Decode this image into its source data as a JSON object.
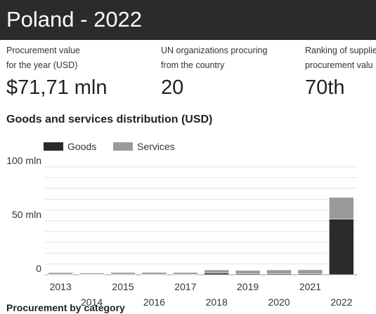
{
  "header": {
    "title": "Poland - 2022"
  },
  "stats": [
    {
      "label_line1": "Procurement value",
      "label_line2": "for the year (USD)",
      "value": "$71,71 mln"
    },
    {
      "label_line1": "UN organizations procuring",
      "label_line2": "from the country",
      "value": "20"
    },
    {
      "label_line1": "Ranking of supplie",
      "label_line2": "procurement valu",
      "value": "70th"
    }
  ],
  "section_title": "Goods and services distribution (USD)",
  "next_section_title": "Procurement by category",
  "colors": {
    "goods": "#2b2b2b",
    "services": "#9a9a9a",
    "grid": "#e2e2e2",
    "axis": "#999999"
  },
  "chart_data": {
    "type": "bar",
    "stacked": true,
    "title": "Goods and services distribution (USD)",
    "categories": [
      "2013",
      "2014",
      "2015",
      "2016",
      "2017",
      "2018",
      "2019",
      "2020",
      "2021",
      "2022"
    ],
    "series": [
      {
        "name": "Goods",
        "color": "#2b2b2b",
        "values": [
          0.5,
          0.4,
          0.6,
          0.5,
          0.5,
          1.5,
          1.0,
          1.0,
          1.0,
          51.5
        ]
      },
      {
        "name": "Services",
        "color": "#9a9a9a",
        "values": [
          1.5,
          1.2,
          1.6,
          1.7,
          1.6,
          3.0,
          3.0,
          3.5,
          3.6,
          20.2
        ]
      }
    ],
    "ylim": [
      0,
      100
    ],
    "yticks": [
      {
        "value": 0,
        "label": "0"
      },
      {
        "value": 50,
        "label": "50 mln"
      },
      {
        "value": 100,
        "label": "100 mln"
      }
    ],
    "grid": true,
    "legend_position": "top-left",
    "xlabel": "",
    "ylabel": ""
  }
}
